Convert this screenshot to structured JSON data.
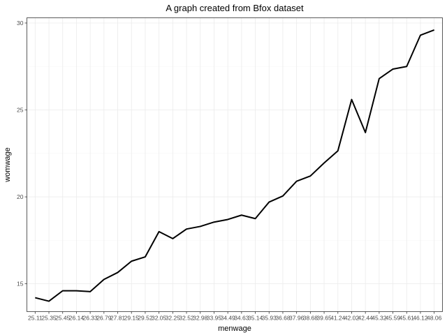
{
  "chart_data": {
    "type": "line",
    "title": "A graph created from Bfox dataset",
    "xlabel": "menwage",
    "ylabel": "womwage",
    "categories": [
      "25.11",
      "25.35",
      "25.45",
      "26.14",
      "26.33",
      "26.79",
      "27.81",
      "29.15",
      "29.52",
      "32.05",
      "32.25",
      "32.52",
      "32.98",
      "33.95",
      "34.49",
      "34.63",
      "35.14",
      "35.93",
      "36.68",
      "37.96",
      "38.68",
      "39.65",
      "41.24",
      "42.02",
      "42.44",
      "45.32",
      "45.59",
      "45.61",
      "46.12",
      "48.06"
    ],
    "values": [
      14.2,
      14.0,
      14.6,
      14.6,
      14.55,
      15.25,
      15.65,
      16.3,
      16.55,
      18.0,
      17.6,
      18.15,
      18.3,
      18.55,
      18.7,
      18.95,
      18.75,
      19.7,
      20.05,
      20.9,
      21.2,
      21.95,
      22.65,
      25.6,
      23.7,
      26.8,
      27.35,
      27.5,
      29.3,
      29.6
    ],
    "ylim": [
      13.4,
      30.3
    ],
    "yticks": [
      15,
      20,
      25,
      30
    ],
    "grid": true,
    "legend": "none"
  }
}
